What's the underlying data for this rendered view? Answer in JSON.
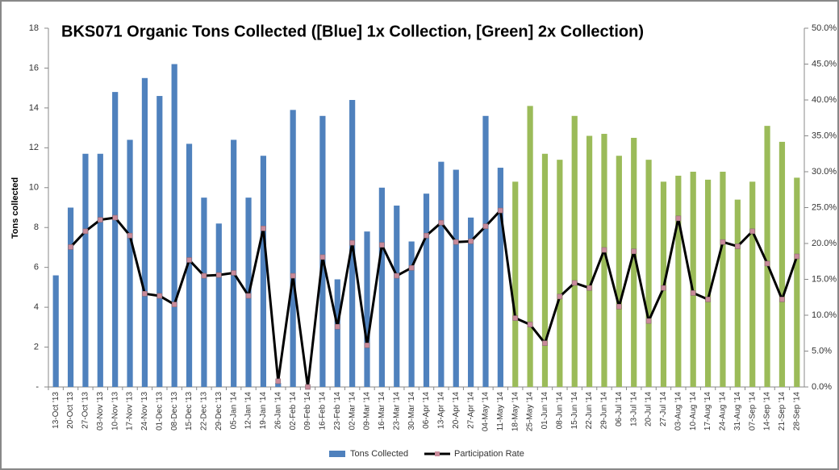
{
  "chart_data": {
    "type": "bar_line",
    "title": "BKS071 Organic Tons Collected ([Blue] 1x Collection, [Green] 2x Collection)",
    "y_axis_label": "Tons collected",
    "categories": [
      "13-Oct '13",
      "20-Oct '13",
      "27-Oct '13",
      "03-Nov '13",
      "10-Nov '13",
      "17-Nov '13",
      "24-Nov '13",
      "01-Dec '13",
      "08-Dec '13",
      "15-Dec '13",
      "22-Dec '13",
      "29-Dec '13",
      "05-Jan '14",
      "12-Jan '14",
      "19-Jan '14",
      "26-Jan '14",
      "02-Feb '14",
      "09-Feb '14",
      "16-Feb '14",
      "23-Feb '14",
      "02-Mar '14",
      "09-Mar '14",
      "16-Mar '14",
      "23-Mar '14",
      "30-Mar '14",
      "06-Apr '14",
      "13-Apr '14",
      "20-Apr '14",
      "27-Apr '14",
      "04-May '14",
      "11-May '14",
      "18-May '14",
      "25-May '14",
      "01-Jun '14",
      "08-Jun '14",
      "15-Jun '14",
      "22-Jun '14",
      "29-Jun '14",
      "06-Jul '14",
      "13-Jul '14",
      "20-Jul '14",
      "27-Jul '14",
      "03-Aug '14",
      "10-Aug '14",
      "17-Aug '14",
      "24-Aug '14",
      "31-Aug '14",
      "07-Sep '14",
      "14-Sep '14",
      "21-Sep '14",
      "28-Sep '14"
    ],
    "series": [
      {
        "name": "Tons Collected",
        "kind": "bar",
        "color": "#4f81bd",
        "point_colors": [
          "#4f81bd",
          "#4f81bd",
          "#4f81bd",
          "#4f81bd",
          "#4f81bd",
          "#4f81bd",
          "#4f81bd",
          "#4f81bd",
          "#4f81bd",
          "#4f81bd",
          "#4f81bd",
          "#4f81bd",
          "#4f81bd",
          "#4f81bd",
          "#4f81bd",
          "#4f81bd",
          "#4f81bd",
          "#4f81bd",
          "#4f81bd",
          "#4f81bd",
          "#4f81bd",
          "#4f81bd",
          "#4f81bd",
          "#4f81bd",
          "#4f81bd",
          "#4f81bd",
          "#4f81bd",
          "#4f81bd",
          "#4f81bd",
          "#4f81bd",
          "#4f81bd",
          "#9bbb59",
          "#9bbb59",
          "#9bbb59",
          "#9bbb59",
          "#9bbb59",
          "#9bbb59",
          "#9bbb59",
          "#9bbb59",
          "#9bbb59",
          "#9bbb59",
          "#9bbb59",
          "#9bbb59",
          "#9bbb59",
          "#9bbb59",
          "#9bbb59",
          "#9bbb59",
          "#9bbb59",
          "#9bbb59",
          "#9bbb59",
          "#9bbb59"
        ],
        "values": [
          5.6,
          9.0,
          11.7,
          11.7,
          14.8,
          12.4,
          15.5,
          14.6,
          16.2,
          12.2,
          9.5,
          8.2,
          12.4,
          9.5,
          11.6,
          0.2,
          13.9,
          0,
          13.6,
          5.4,
          14.4,
          7.8,
          10.0,
          9.1,
          7.3,
          9.7,
          11.3,
          10.9,
          8.5,
          13.6,
          11.0,
          10.3,
          14.1,
          11.7,
          11.4,
          13.6,
          12.6,
          12.7,
          11.6,
          12.5,
          11.4,
          10.3,
          10.6,
          10.8,
          10.4,
          10.8,
          9.4,
          10.3,
          13.1,
          12.3,
          10.5
        ]
      },
      {
        "name": "Participation Rate",
        "kind": "line",
        "color": "#000000",
        "marker_color": "#c98a9a",
        "axis": "y2",
        "values": [
          null,
          19.5,
          21.7,
          23.3,
          23.6,
          21.1,
          13.0,
          12.7,
          11.5,
          17.7,
          15.5,
          15.6,
          15.9,
          12.7,
          22.1,
          0.8,
          15.5,
          0.0,
          18.1,
          8.4,
          20.1,
          5.8,
          19.8,
          15.5,
          16.6,
          21.1,
          22.9,
          20.2,
          20.3,
          22.4,
          24.6,
          9.6,
          8.7,
          6.1,
          12.6,
          14.5,
          13.8,
          19.1,
          11.2,
          18.9,
          9.2,
          13.8,
          23.5,
          13.1,
          12.2,
          20.2,
          19.6,
          21.7,
          17.2,
          12.2,
          18.2
        ]
      }
    ],
    "ylim": [
      0,
      18
    ],
    "yticks": [
      {
        "value": 0,
        "label": "-"
      },
      2,
      4,
      6,
      8,
      10,
      12,
      14,
      16,
      18
    ],
    "y2lim": [
      0,
      50
    ],
    "y2ticks": [
      {
        "value": 0,
        "label": "0.0%"
      },
      {
        "value": 5,
        "label": "5.0%"
      },
      {
        "value": 10,
        "label": "10.0%"
      },
      {
        "value": 15,
        "label": "15.0%"
      },
      {
        "value": 20,
        "label": "20.0%"
      },
      {
        "value": 25,
        "label": "25.0%"
      },
      {
        "value": 30,
        "label": "30.0%"
      },
      {
        "value": 35,
        "label": "35.0%"
      },
      {
        "value": 40,
        "label": "40.0%"
      },
      {
        "value": 45,
        "label": "45.0%"
      },
      {
        "value": 50,
        "label": "50.0%"
      }
    ],
    "grid": false,
    "legend": "bottom"
  }
}
